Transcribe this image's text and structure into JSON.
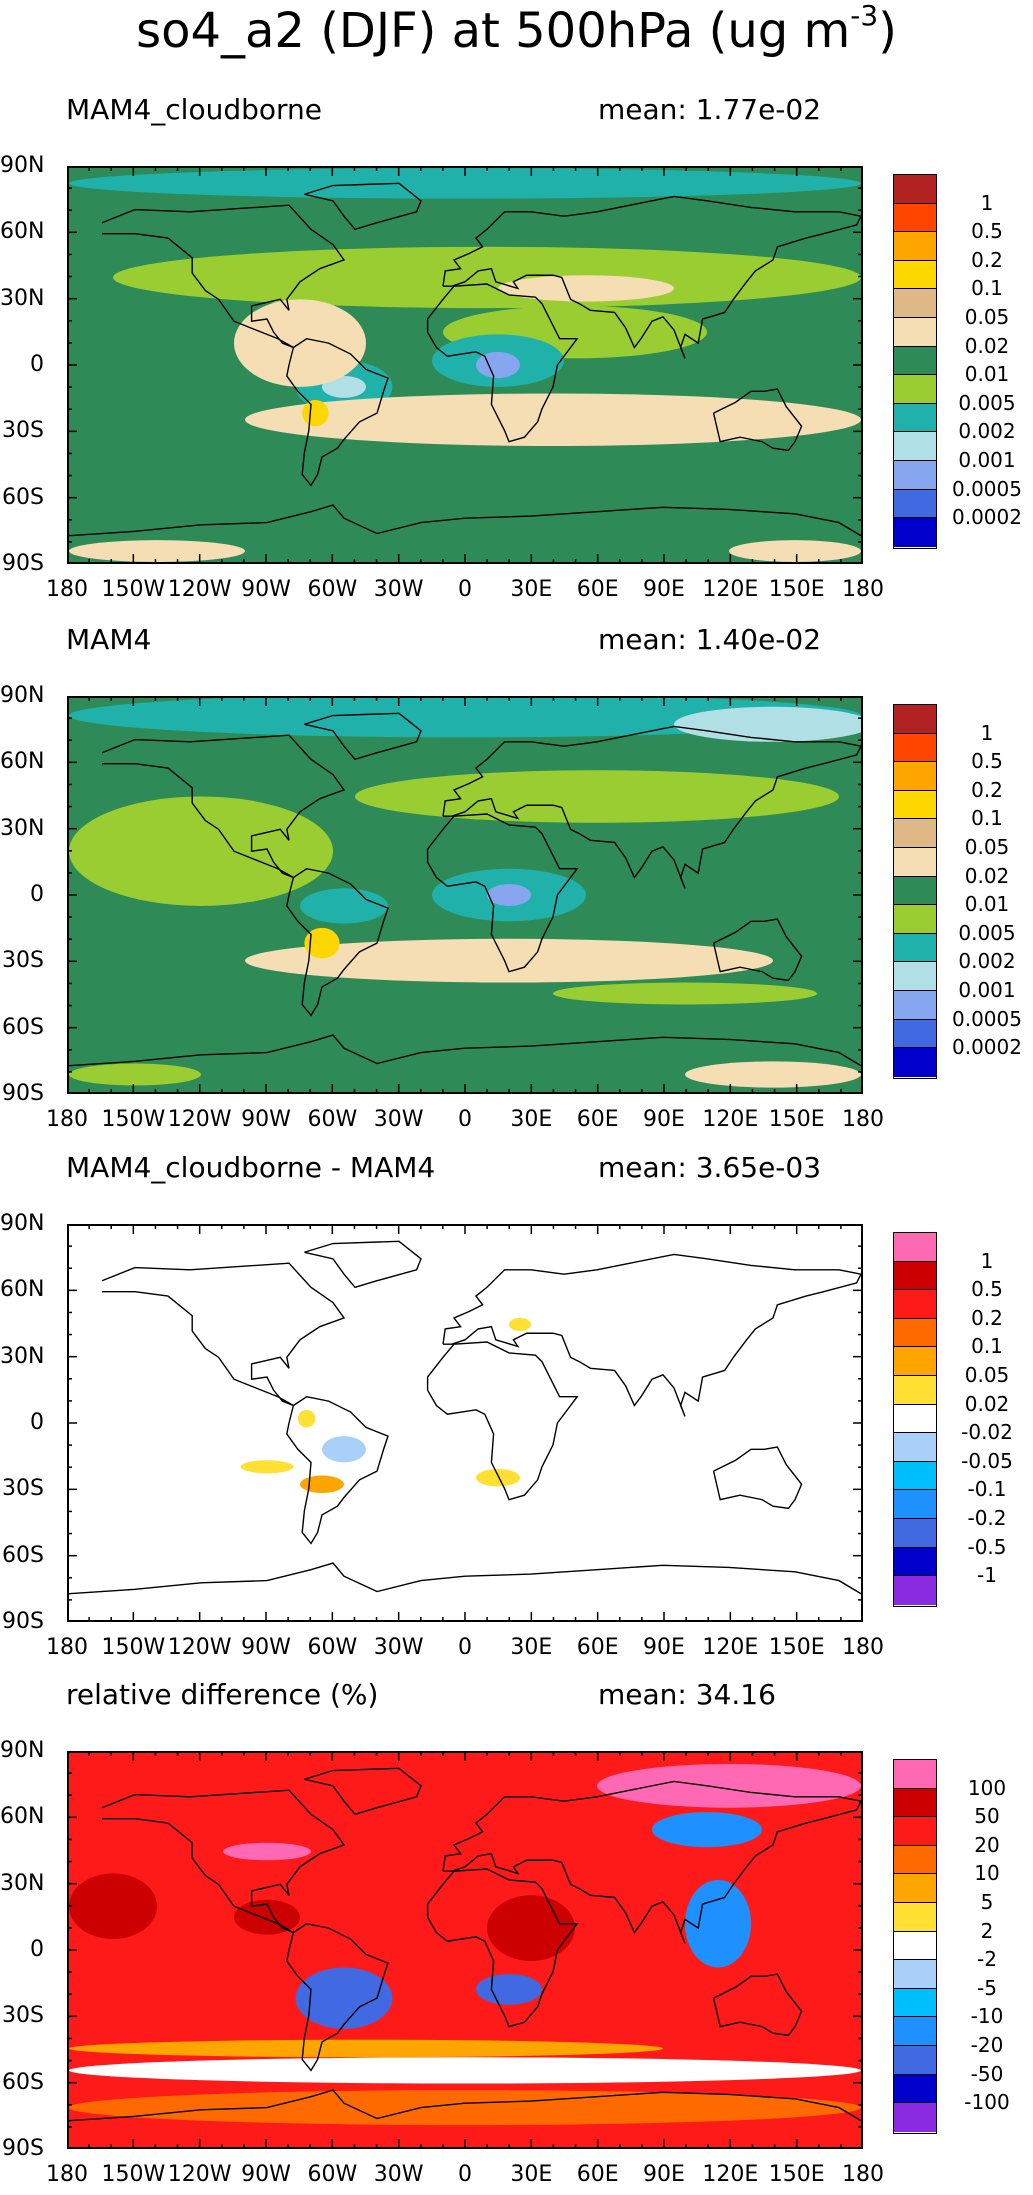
{
  "title": {
    "main": "so4_a2 (DJF) at 500hPa (ug m",
    "exponent": "-3",
    "close": ")"
  },
  "axes": {
    "lat_labels": [
      "90N",
      "60N",
      "30N",
      "0",
      "30S",
      "60S",
      "90S"
    ],
    "lon_labels": [
      "180",
      "150W",
      "120W",
      "90W",
      "60W",
      "30W",
      "0",
      "30E",
      "60E",
      "90E",
      "120E",
      "150E",
      "180"
    ]
  },
  "panels": [
    {
      "left_title": "MAM4_cloudborne",
      "right_title": "mean: 1.77e-02",
      "colorbar": {
        "labels": [
          "1",
          "0.5",
          "0.2",
          "0.1",
          "0.05",
          "0.02",
          "0.01",
          "0.005",
          "0.002",
          "0.001",
          "0.0005",
          "0.0002"
        ],
        "colors": [
          "#b22222",
          "#ff4500",
          "#ffa500",
          "#ffd700",
          "#deb887",
          "#f5deb3",
          "#2e8b57",
          "#9acd32",
          "#20b2aa",
          "#b0e0e6",
          "#87a6f0",
          "#4169e1",
          "#0000cd"
        ]
      }
    },
    {
      "left_title": "MAM4",
      "right_title": "mean: 1.40e-02",
      "colorbar": {
        "labels": [
          "1",
          "0.5",
          "0.2",
          "0.1",
          "0.05",
          "0.02",
          "0.01",
          "0.005",
          "0.002",
          "0.001",
          "0.0005",
          "0.0002"
        ],
        "colors": [
          "#b22222",
          "#ff4500",
          "#ffa500",
          "#ffd700",
          "#deb887",
          "#f5deb3",
          "#2e8b57",
          "#9acd32",
          "#20b2aa",
          "#b0e0e6",
          "#87a6f0",
          "#4169e1",
          "#0000cd"
        ]
      }
    },
    {
      "left_title": "MAM4_cloudborne - MAM4",
      "right_title": "mean: 3.65e-03",
      "colorbar": {
        "labels": [
          "1",
          "0.5",
          "0.2",
          "0.1",
          "0.05",
          "0.02",
          "-0.02",
          "-0.05",
          "-0.1",
          "-0.2",
          "-0.5",
          "-1"
        ],
        "colors": [
          "#ff69b4",
          "#cc0000",
          "#ff1a1a",
          "#ff6a00",
          "#ffa500",
          "#ffe033",
          "#ffffff",
          "#a8d0f8",
          "#00bfff",
          "#1e90ff",
          "#4169e1",
          "#0000cd",
          "#8a2be2"
        ]
      }
    },
    {
      "left_title": "relative difference (%)",
      "right_title": "mean: 34.16",
      "colorbar": {
        "labels": [
          "100",
          "50",
          "20",
          "10",
          "5",
          "2",
          "-2",
          "-5",
          "-10",
          "-20",
          "-50",
          "-100"
        ],
        "colors": [
          "#ff69b4",
          "#cc0000",
          "#ff1a1a",
          "#ff6a00",
          "#ffa500",
          "#ffe033",
          "#ffffff",
          "#a8d0f8",
          "#00bfff",
          "#1e90ff",
          "#4169e1",
          "#0000cd",
          "#8a2be2"
        ]
      }
    }
  ],
  "chart_data": [
    {
      "type": "heatmap",
      "title": "MAM4_cloudborne",
      "annotation": "mean: 1.77e-02",
      "xlim": [
        -180,
        180
      ],
      "ylim": [
        -90,
        90
      ],
      "levels": [
        0.0002,
        0.0005,
        0.001,
        0.002,
        0.005,
        0.01,
        0.02,
        0.05,
        0.1,
        0.2,
        0.5,
        1
      ],
      "background_value": 0.01,
      "regions": [
        {
          "lon": 0,
          "lat": 83,
          "rlon": 180,
          "rlat": 7,
          "value": 0.003
        },
        {
          "lon": 10,
          "lat": 40,
          "rlon": 170,
          "rlat": 14,
          "value": 0.007
        },
        {
          "lon": 50,
          "lat": 15,
          "rlon": 60,
          "rlat": 12,
          "value": 0.007
        },
        {
          "lon": 15,
          "lat": 2,
          "rlon": 30,
          "rlat": 12,
          "value": 0.003
        },
        {
          "lon": 15,
          "lat": 0,
          "rlon": 10,
          "rlat": 6,
          "value": 0.0005
        },
        {
          "lon": -55,
          "lat": -10,
          "rlon": 22,
          "rlat": 12,
          "value": 0.003
        },
        {
          "lon": -55,
          "lat": -10,
          "rlon": 10,
          "rlat": 5,
          "value": 0.001
        },
        {
          "lon": 40,
          "lat": -25,
          "rlon": 140,
          "rlat": 12,
          "value": 0.03
        },
        {
          "lon": -75,
          "lat": 10,
          "rlon": 30,
          "rlat": 20,
          "value": 0.03
        },
        {
          "lon": 55,
          "lat": 35,
          "rlon": 40,
          "rlat": 6,
          "value": 0.03
        },
        {
          "lon": -68,
          "lat": -22,
          "rlon": 6,
          "rlat": 6,
          "value": 0.15
        },
        {
          "lon": -140,
          "lat": -85,
          "rlon": 40,
          "rlat": 5,
          "value": 0.03
        },
        {
          "lon": 150,
          "lat": -85,
          "rlon": 30,
          "rlat": 5,
          "value": 0.03
        }
      ]
    },
    {
      "type": "heatmap",
      "title": "MAM4",
      "annotation": "mean: 1.40e-02",
      "xlim": [
        -180,
        180
      ],
      "ylim": [
        -90,
        90
      ],
      "levels": [
        0.0002,
        0.0005,
        0.001,
        0.002,
        0.005,
        0.01,
        0.02,
        0.05,
        0.1,
        0.2,
        0.5,
        1
      ],
      "background_value": 0.01,
      "regions": [
        {
          "lon": 0,
          "lat": 82,
          "rlon": 180,
          "rlat": 10,
          "value": 0.003
        },
        {
          "lon": 140,
          "lat": 78,
          "rlon": 45,
          "rlat": 8,
          "value": 0.0015
        },
        {
          "lon": -120,
          "lat": 20,
          "rlon": 60,
          "rlat": 25,
          "value": 0.007
        },
        {
          "lon": 60,
          "lat": 45,
          "rlon": 110,
          "rlat": 12,
          "value": 0.007
        },
        {
          "lon": 20,
          "lat": 0,
          "rlon": 35,
          "rlat": 12,
          "value": 0.003
        },
        {
          "lon": 20,
          "lat": 0,
          "rlon": 10,
          "rlat": 5,
          "value": 0.0005
        },
        {
          "lon": -55,
          "lat": -5,
          "rlon": 20,
          "rlat": 8,
          "value": 0.003
        },
        {
          "lon": 20,
          "lat": -30,
          "rlon": 120,
          "rlat": 10,
          "value": 0.03
        },
        {
          "lon": -65,
          "lat": -22,
          "rlon": 8,
          "rlat": 7,
          "value": 0.15
        },
        {
          "lon": 100,
          "lat": -45,
          "rlon": 60,
          "rlat": 5,
          "value": 0.007
        },
        {
          "lon": 140,
          "lat": -82,
          "rlon": 40,
          "rlat": 6,
          "value": 0.03
        },
        {
          "lon": -150,
          "lat": -82,
          "rlon": 30,
          "rlat": 5,
          "value": 0.007
        }
      ]
    },
    {
      "type": "heatmap",
      "title": "MAM4_cloudborne - MAM4",
      "annotation": "mean: 3.65e-03",
      "xlim": [
        -180,
        180
      ],
      "ylim": [
        -90,
        90
      ],
      "levels": [
        -1,
        -0.5,
        -0.2,
        -0.1,
        -0.05,
        -0.02,
        0.02,
        0.05,
        0.1,
        0.2,
        0.5,
        1
      ],
      "background_value": 0,
      "regions": [
        {
          "lon": -65,
          "lat": -28,
          "rlon": 10,
          "rlat": 4,
          "value": 0.07
        },
        {
          "lon": -90,
          "lat": -20,
          "rlon": 12,
          "rlat": 3,
          "value": 0.03
        },
        {
          "lon": -55,
          "lat": -12,
          "rlon": 10,
          "rlat": 6,
          "value": -0.04
        },
        {
          "lon": -72,
          "lat": 2,
          "rlon": 4,
          "rlat": 4,
          "value": 0.03
        },
        {
          "lon": 15,
          "lat": -25,
          "rlon": 10,
          "rlat": 4,
          "value": 0.03
        },
        {
          "lon": 25,
          "lat": 45,
          "rlon": 5,
          "rlat": 3,
          "value": 0.03
        }
      ]
    },
    {
      "type": "heatmap",
      "title": "relative difference (%)",
      "annotation": "mean: 34.16",
      "xlim": [
        -180,
        180
      ],
      "ylim": [
        -90,
        90
      ],
      "levels": [
        -100,
        -50,
        -20,
        -10,
        -5,
        -2,
        2,
        5,
        10,
        20,
        50,
        100
      ],
      "background_value": 30,
      "regions": [
        {
          "lon": 120,
          "lat": 75,
          "rlon": 60,
          "rlat": 10,
          "value": 120
        },
        {
          "lon": 110,
          "lat": 55,
          "rlon": 25,
          "rlat": 8,
          "value": -15
        },
        {
          "lon": 115,
          "lat": 12,
          "rlon": 15,
          "rlat": 20,
          "value": -15
        },
        {
          "lon": -55,
          "lat": -22,
          "rlon": 22,
          "rlat": 14,
          "value": -30
        },
        {
          "lon": 20,
          "lat": -18,
          "rlon": 15,
          "rlat": 7,
          "value": -25
        },
        {
          "lon": -45,
          "lat": -45,
          "rlon": 135,
          "rlat": 4,
          "value": 7
        },
        {
          "lon": 0,
          "lat": -55,
          "rlon": 180,
          "rlat": 6,
          "value": 1
        },
        {
          "lon": 0,
          "lat": -72,
          "rlon": 180,
          "rlat": 8,
          "value": 15
        },
        {
          "lon": -90,
          "lat": 45,
          "rlon": 20,
          "rlat": 4,
          "value": 120
        },
        {
          "lon": -90,
          "lat": 15,
          "rlon": 15,
          "rlat": 8,
          "value": 70
        },
        {
          "lon": 30,
          "lat": 10,
          "rlon": 20,
          "rlat": 15,
          "value": 70
        },
        {
          "lon": -160,
          "lat": 20,
          "rlon": 20,
          "rlat": 15,
          "value": 70
        }
      ]
    }
  ]
}
